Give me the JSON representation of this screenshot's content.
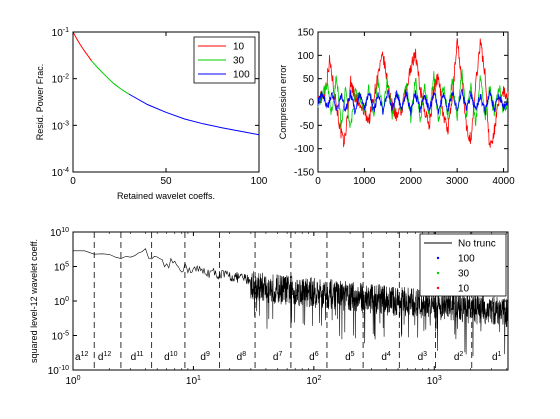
{
  "chart_data": [
    {
      "type": "line",
      "ylabel": "Resid. Power Frac.",
      "xlabel": "Retained wavelet coeffs.",
      "xlim": [
        0,
        100
      ],
      "ylim": [
        0.0001,
        0.1
      ],
      "yscale": "log",
      "x_ticks": [
        "0",
        "50",
        "100"
      ],
      "y_ticks": [
        {
          "base": "10",
          "exp": "-1"
        },
        {
          "base": "10",
          "exp": "-2"
        },
        {
          "base": "10",
          "exp": "-3"
        },
        {
          "base": "10",
          "exp": "-4"
        }
      ],
      "grid": false,
      "legend_position": "top-right",
      "series": [
        {
          "name": "10",
          "color": "#ff0000",
          "x": [
            0,
            2,
            4,
            6,
            8,
            10
          ],
          "y": [
            0.1,
            0.072,
            0.053,
            0.04,
            0.031,
            0.024
          ]
        },
        {
          "name": "30",
          "color": "#00cc00",
          "x": [
            10,
            14,
            18,
            22,
            26,
            30
          ],
          "y": [
            0.024,
            0.016,
            0.011,
            0.0078,
            0.0059,
            0.0047
          ]
        },
        {
          "name": "100",
          "color": "#0000ff",
          "x": [
            30,
            40,
            50,
            60,
            70,
            80,
            90,
            100
          ],
          "y": [
            0.0047,
            0.0028,
            0.0019,
            0.00137,
            0.00108,
            0.00089,
            0.00075,
            0.00063
          ]
        }
      ]
    },
    {
      "type": "line",
      "ylabel": "Compression error",
      "xlim": [
        0,
        4096
      ],
      "ylim": [
        -150,
        150
      ],
      "x_ticks": [
        "0",
        "1000",
        "2000",
        "3000",
        "4000"
      ],
      "y_ticks": [
        "150",
        "100",
        "50",
        "0",
        "-50",
        "-100",
        "-150"
      ],
      "grid": false,
      "series": [
        {
          "name": "10",
          "color": "#ff0000",
          "x": [
            0,
            150,
            250,
            350,
            420,
            480,
            560,
            640,
            700,
            800,
            900,
            1000,
            1100,
            1200,
            1300,
            1400,
            1500,
            1600,
            1700,
            1800,
            1900,
            2000,
            2100,
            2200,
            2300,
            2400,
            2500,
            2600,
            2700,
            2800,
            2900,
            3000,
            3100,
            3200,
            3300,
            3400,
            3500,
            3600,
            3700,
            3800,
            3900,
            4000,
            4096
          ],
          "y": [
            5,
            20,
            90,
            25,
            -20,
            -60,
            -90,
            -30,
            45,
            10,
            -10,
            -20,
            -40,
            10,
            60,
            100,
            40,
            -10,
            -30,
            -20,
            20,
            75,
            105,
            30,
            -20,
            -50,
            30,
            60,
            -30,
            -60,
            10,
            135,
            50,
            -60,
            -80,
            40,
            130,
            60,
            -100,
            -60,
            0,
            25,
            10
          ]
        },
        {
          "name": "30",
          "color": "#00cc00",
          "x": [
            0,
            100,
            200,
            300,
            400,
            500,
            600,
            700,
            800,
            900,
            1000,
            1100,
            1200,
            1300,
            1400,
            1500,
            1600,
            1700,
            1800,
            1900,
            2000,
            2100,
            2200,
            2300,
            2400,
            2500,
            2600,
            2700,
            2800,
            2900,
            3000,
            3100,
            3200,
            3300,
            3400,
            3500,
            3600,
            3700,
            3800,
            3900,
            4000,
            4096
          ],
          "y": [
            0,
            15,
            40,
            -30,
            55,
            -50,
            30,
            -60,
            20,
            10,
            -15,
            30,
            -25,
            45,
            -20,
            50,
            -30,
            25,
            -20,
            40,
            -35,
            55,
            -40,
            30,
            -25,
            60,
            -45,
            35,
            -30,
            50,
            -40,
            65,
            -30,
            40,
            -45,
            55,
            -35,
            30,
            -25,
            35,
            -20,
            0
          ]
        },
        {
          "name": "100",
          "color": "#0000ff",
          "x": [
            0,
            100,
            200,
            300,
            400,
            500,
            600,
            700,
            800,
            900,
            1000,
            1100,
            1200,
            1300,
            1400,
            1500,
            1600,
            1700,
            1800,
            1900,
            2000,
            2100,
            2200,
            2300,
            2400,
            2500,
            2600,
            2700,
            2800,
            2900,
            3000,
            3100,
            3200,
            3300,
            3400,
            3500,
            3600,
            3700,
            3800,
            3900,
            4000,
            4096
          ],
          "y": [
            0,
            18,
            -15,
            22,
            -20,
            15,
            -18,
            20,
            -22,
            16,
            -14,
            20,
            -18,
            15,
            -20,
            22,
            -16,
            18,
            -15,
            20,
            -22,
            18,
            -16,
            15,
            -20,
            22,
            -18,
            16,
            -15,
            20,
            -18,
            22,
            -16,
            18,
            -20,
            15,
            -22,
            18,
            -16,
            14,
            -10,
            0
          ]
        }
      ]
    },
    {
      "type": "line",
      "ylabel": "squared level-12 wavelet coeff.",
      "xlim": [
        1,
        4096
      ],
      "ylim": [
        1e-10,
        10000000000.0
      ],
      "xscale": "log",
      "yscale": "log",
      "x_ticks": [
        {
          "base": "10",
          "exp": "0"
        },
        {
          "base": "10",
          "exp": "1"
        },
        {
          "base": "10",
          "exp": "2"
        },
        {
          "base": "10",
          "exp": "3"
        }
      ],
      "y_ticks": [
        {
          "base": "10",
          "exp": "10"
        },
        {
          "base": "10",
          "exp": "5"
        },
        {
          "base": "10",
          "exp": "0"
        },
        {
          "base": "10",
          "exp": "-5"
        },
        {
          "base": "10",
          "exp": "-10"
        }
      ],
      "grid": false,
      "legend_position": "top-right",
      "band_boundaries": [
        1.5,
        2.5,
        4.5,
        8.5,
        16.5,
        32.5,
        64.5,
        128.5,
        256.5,
        512.5,
        1024.5,
        2048.5
      ],
      "band_labels": [
        {
          "text": "a",
          "sup": "12",
          "x": 1.0
        },
        {
          "text": "d",
          "sup": "12",
          "x": 1.55
        },
        {
          "text": "d",
          "sup": "11",
          "x": 2.9
        },
        {
          "text": "d",
          "sup": "10",
          "x": 5.5
        },
        {
          "text": "d",
          "sup": "9",
          "x": 11
        },
        {
          "text": "d",
          "sup": "8",
          "x": 22
        },
        {
          "text": "d",
          "sup": "7",
          "x": 44
        },
        {
          "text": "d",
          "sup": "6",
          "x": 88
        },
        {
          "text": "d",
          "sup": "5",
          "x": 175
        },
        {
          "text": "d",
          "sup": "4",
          "x": 350
        },
        {
          "text": "d",
          "sup": "3",
          "x": 700
        },
        {
          "text": "d",
          "sup": "2",
          "x": 1400
        },
        {
          "text": "d",
          "sup": "1",
          "x": 2900
        }
      ],
      "series": [
        {
          "name": "No trunc",
          "color": "#000000",
          "envelope_x": [
            1,
            1.5,
            2,
            2.5,
            3,
            4,
            4.5,
            5,
            6,
            7,
            8,
            10,
            12,
            16,
            20,
            30,
            40,
            60,
            100,
            150,
            200,
            300,
            500,
            800,
            1000,
            1500,
            2000,
            3000,
            4096
          ],
          "envelope_y": [
            30000000.0,
            10000000.0,
            5000000.0,
            2000000.0,
            3000000.0,
            20000000.0,
            3000000.0,
            1000000.0,
            300000.0,
            1000000.0,
            200000.0,
            100000.0,
            50000.0,
            20000.0,
            10000.0,
            3000.0,
            1000.0,
            500,
            200,
            100,
            50,
            30,
            10,
            5,
            3,
            2,
            1,
            0.5,
            0.3
          ]
        },
        {
          "name": "100",
          "color": "#0000ff",
          "marker": "dot"
        },
        {
          "name": "30",
          "color": "#00cc00",
          "marker": "dot"
        },
        {
          "name": "10",
          "color": "#ff0000",
          "marker": "dot"
        }
      ]
    }
  ]
}
